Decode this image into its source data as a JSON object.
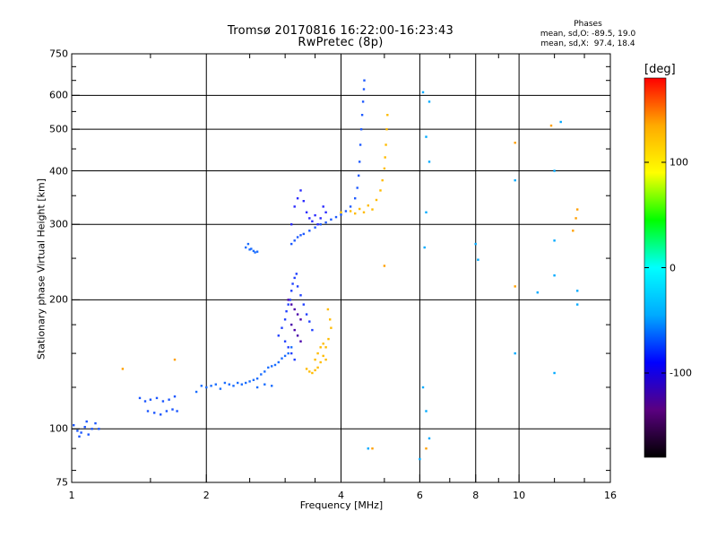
{
  "chart_data": {
    "type": "scatter",
    "title": "Tromsø 20170816 16:22:00-16:23:43",
    "subtitle": "RwPretec (8p)",
    "xlabel": "Frequency [MHz]",
    "ylabel": "Stationary phase Virtual Height [km]",
    "x_scale": "log",
    "y_scale": "log",
    "xlim": [
      1,
      16
    ],
    "ylim": [
      75,
      750
    ],
    "x_ticks": [
      1,
      2,
      4,
      6,
      8,
      10,
      16
    ],
    "x_tick_labels": [
      "1",
      "2",
      "4",
      "6",
      "8",
      "10",
      "16"
    ],
    "y_ticks": [
      75,
      100,
      200,
      300,
      400,
      500,
      600,
      750
    ],
    "y_tick_labels": [
      "75",
      "100",
      "200",
      "300",
      "400",
      "500",
      "600",
      "750"
    ],
    "x_gridlines": [
      2,
      4,
      6,
      8,
      10
    ],
    "y_gridlines": [
      100,
      200,
      300,
      400,
      500,
      600
    ],
    "grid": true,
    "phases_box": {
      "title": "Phases",
      "line_o": "mean, sd,O: -89.5, 19.0",
      "line_x": "mean, sd,X:  97.4, 18.4"
    },
    "colorbar": {
      "title": "[deg]",
      "range": [
        -180,
        180
      ],
      "ticks": [
        100,
        0,
        -100
      ],
      "tick_labels": [
        "100",
        "0",
        "-100"
      ],
      "colors": [
        "#000000",
        "#5a0080",
        "#0000ff",
        "#00aaff",
        "#00ffff",
        "#00ff00",
        "#ffff00",
        "#ffaa00",
        "#ff0000"
      ]
    },
    "traces": [
      {
        "group": "E",
        "phase": -100,
        "color": "#1a55ff",
        "points": [
          [
            1.01,
            102
          ],
          [
            1.03,
            99
          ],
          [
            1.05,
            98
          ],
          [
            1.07,
            101
          ],
          [
            1.09,
            97
          ],
          [
            1.11,
            100
          ],
          [
            1.13,
            103
          ],
          [
            1.15,
            100
          ],
          [
            1.04,
            96
          ],
          [
            1.08,
            104
          ]
        ]
      },
      {
        "group": "E",
        "phase": -105,
        "color": "#1a55ff",
        "points": [
          [
            1.42,
            118
          ],
          [
            1.46,
            116
          ],
          [
            1.5,
            117
          ],
          [
            1.55,
            118
          ],
          [
            1.6,
            116
          ],
          [
            1.65,
            117
          ],
          [
            1.7,
            119
          ],
          [
            1.48,
            110
          ],
          [
            1.53,
            109
          ],
          [
            1.58,
            108
          ],
          [
            1.63,
            110
          ],
          [
            1.68,
            111
          ],
          [
            1.72,
            110
          ]
        ]
      },
      {
        "group": "F1-O",
        "phase": -95,
        "color": "#1a6dff",
        "points": [
          [
            1.9,
            122
          ],
          [
            1.95,
            126
          ],
          [
            2.0,
            125
          ],
          [
            2.05,
            126
          ],
          [
            2.1,
            127
          ],
          [
            2.15,
            124
          ],
          [
            2.2,
            128
          ],
          [
            2.25,
            127
          ],
          [
            2.3,
            126
          ],
          [
            2.35,
            128
          ],
          [
            2.4,
            127
          ],
          [
            2.45,
            128
          ],
          [
            2.5,
            129
          ],
          [
            2.55,
            130
          ],
          [
            2.6,
            131
          ],
          [
            2.65,
            134
          ],
          [
            2.7,
            136
          ],
          [
            2.75,
            139
          ],
          [
            2.8,
            140
          ],
          [
            2.85,
            141
          ],
          [
            2.9,
            143
          ],
          [
            2.95,
            146
          ],
          [
            3.0,
            148
          ],
          [
            3.05,
            150
          ],
          [
            3.1,
            155
          ],
          [
            2.6,
            125
          ],
          [
            2.7,
            127
          ],
          [
            2.8,
            126
          ]
        ]
      },
      {
        "group": "F1-O",
        "phase": -90,
        "color": "#1a6dff",
        "points": [
          [
            2.45,
            265
          ],
          [
            2.5,
            262
          ],
          [
            2.55,
            260
          ],
          [
            2.6,
            259
          ],
          [
            2.48,
            270
          ],
          [
            2.52,
            263
          ],
          [
            2.57,
            258
          ]
        ]
      },
      {
        "group": "F1-O",
        "phase": -110,
        "color": "#2040ff",
        "points": [
          [
            2.9,
            165
          ],
          [
            2.95,
            172
          ],
          [
            3.0,
            180
          ],
          [
            3.02,
            188
          ],
          [
            3.05,
            195
          ],
          [
            3.08,
            200
          ],
          [
            3.1,
            210
          ],
          [
            3.12,
            218
          ],
          [
            3.15,
            225
          ],
          [
            3.18,
            230
          ],
          [
            3.2,
            215
          ],
          [
            3.25,
            205
          ],
          [
            3.3,
            195
          ],
          [
            3.35,
            185
          ],
          [
            3.4,
            178
          ],
          [
            3.45,
            170
          ],
          [
            3.0,
            160
          ],
          [
            3.05,
            155
          ],
          [
            3.1,
            150
          ],
          [
            3.15,
            145
          ]
        ]
      },
      {
        "group": "F1-O",
        "phase": -135,
        "color": "#4a00aa",
        "points": [
          [
            3.05,
            200
          ],
          [
            3.1,
            195
          ],
          [
            3.15,
            190
          ],
          [
            3.2,
            185
          ],
          [
            3.25,
            180
          ],
          [
            3.1,
            175
          ],
          [
            3.15,
            170
          ],
          [
            3.2,
            165
          ],
          [
            3.25,
            160
          ]
        ]
      },
      {
        "group": "F1-X",
        "phase": 95,
        "color": "#ffbb00",
        "points": [
          [
            3.35,
            138
          ],
          [
            3.4,
            136
          ],
          [
            3.45,
            135
          ],
          [
            3.5,
            137
          ],
          [
            3.55,
            139
          ],
          [
            3.6,
            143
          ],
          [
            3.65,
            148
          ],
          [
            3.7,
            155
          ],
          [
            3.75,
            162
          ],
          [
            3.8,
            172
          ],
          [
            3.78,
            180
          ],
          [
            3.74,
            190
          ],
          [
            3.5,
            145
          ],
          [
            3.55,
            150
          ],
          [
            3.6,
            155
          ],
          [
            3.65,
            158
          ],
          [
            3.7,
            145
          ]
        ]
      },
      {
        "group": "F2-O",
        "phase": -105,
        "color": "#1e5aff",
        "points": [
          [
            3.1,
            270
          ],
          [
            3.15,
            275
          ],
          [
            3.2,
            280
          ],
          [
            3.25,
            283
          ],
          [
            3.3,
            285
          ],
          [
            3.4,
            290
          ],
          [
            3.5,
            295
          ],
          [
            3.6,
            300
          ],
          [
            3.7,
            303
          ],
          [
            3.8,
            308
          ],
          [
            3.9,
            312
          ],
          [
            4.0,
            316
          ],
          [
            4.1,
            322
          ],
          [
            4.2,
            330
          ],
          [
            4.3,
            345
          ],
          [
            4.35,
            365
          ],
          [
            4.38,
            390
          ],
          [
            4.4,
            420
          ],
          [
            4.42,
            460
          ],
          [
            4.44,
            500
          ],
          [
            4.46,
            540
          ],
          [
            4.48,
            580
          ],
          [
            4.5,
            620
          ],
          [
            4.51,
            650
          ]
        ]
      },
      {
        "group": "F2-O",
        "phase": -120,
        "color": "#2a2aff",
        "points": [
          [
            3.1,
            300
          ],
          [
            3.15,
            330
          ],
          [
            3.2,
            345
          ],
          [
            3.25,
            360
          ],
          [
            3.3,
            340
          ],
          [
            3.35,
            320
          ],
          [
            3.4,
            310
          ],
          [
            3.45,
            305
          ],
          [
            3.5,
            315
          ],
          [
            3.55,
            300
          ],
          [
            3.6,
            310
          ],
          [
            3.65,
            330
          ],
          [
            3.7,
            320
          ]
        ]
      },
      {
        "group": "F2-X",
        "phase": 100,
        "color": "#ffbb00",
        "points": [
          [
            4.0,
            320
          ],
          [
            4.2,
            322
          ],
          [
            4.4,
            326
          ],
          [
            4.6,
            332
          ],
          [
            4.8,
            342
          ],
          [
            4.9,
            360
          ],
          [
            4.95,
            380
          ],
          [
            5.0,
            405
          ],
          [
            5.02,
            430
          ],
          [
            5.04,
            460
          ],
          [
            5.06,
            500
          ],
          [
            5.08,
            540
          ],
          [
            4.3,
            318
          ],
          [
            4.5,
            320
          ],
          [
            4.7,
            325
          ]
        ]
      },
      {
        "group": "noise",
        "phase": -60,
        "color": "#00aaff",
        "points": [
          [
            6.1,
            610
          ],
          [
            6.3,
            580
          ],
          [
            6.2,
            480
          ],
          [
            6.3,
            420
          ],
          [
            6.2,
            320
          ],
          [
            6.15,
            265
          ],
          [
            6.1,
            125
          ],
          [
            6.2,
            110
          ],
          [
            6.3,
            95
          ],
          [
            8.0,
            270
          ],
          [
            8.1,
            248
          ],
          [
            9.8,
            380
          ],
          [
            9.8,
            150
          ],
          [
            12.0,
            135
          ],
          [
            12.4,
            520
          ],
          [
            12.0,
            400
          ],
          [
            12.0,
            275
          ],
          [
            12.0,
            228
          ],
          [
            13.5,
            210
          ],
          [
            13.5,
            195
          ],
          [
            11.0,
            208
          ],
          [
            6.0,
            85
          ],
          [
            4.6,
            90
          ]
        ]
      },
      {
        "group": "noise-warm",
        "phase": 110,
        "color": "#ffa000",
        "points": [
          [
            1.3,
            138
          ],
          [
            1.7,
            145
          ],
          [
            4.7,
            90
          ],
          [
            5.0,
            240
          ],
          [
            6.2,
            90
          ],
          [
            9.8,
            465
          ],
          [
            11.8,
            510
          ],
          [
            13.2,
            290
          ],
          [
            13.5,
            325
          ],
          [
            13.4,
            310
          ],
          [
            9.8,
            215
          ]
        ]
      }
    ]
  }
}
